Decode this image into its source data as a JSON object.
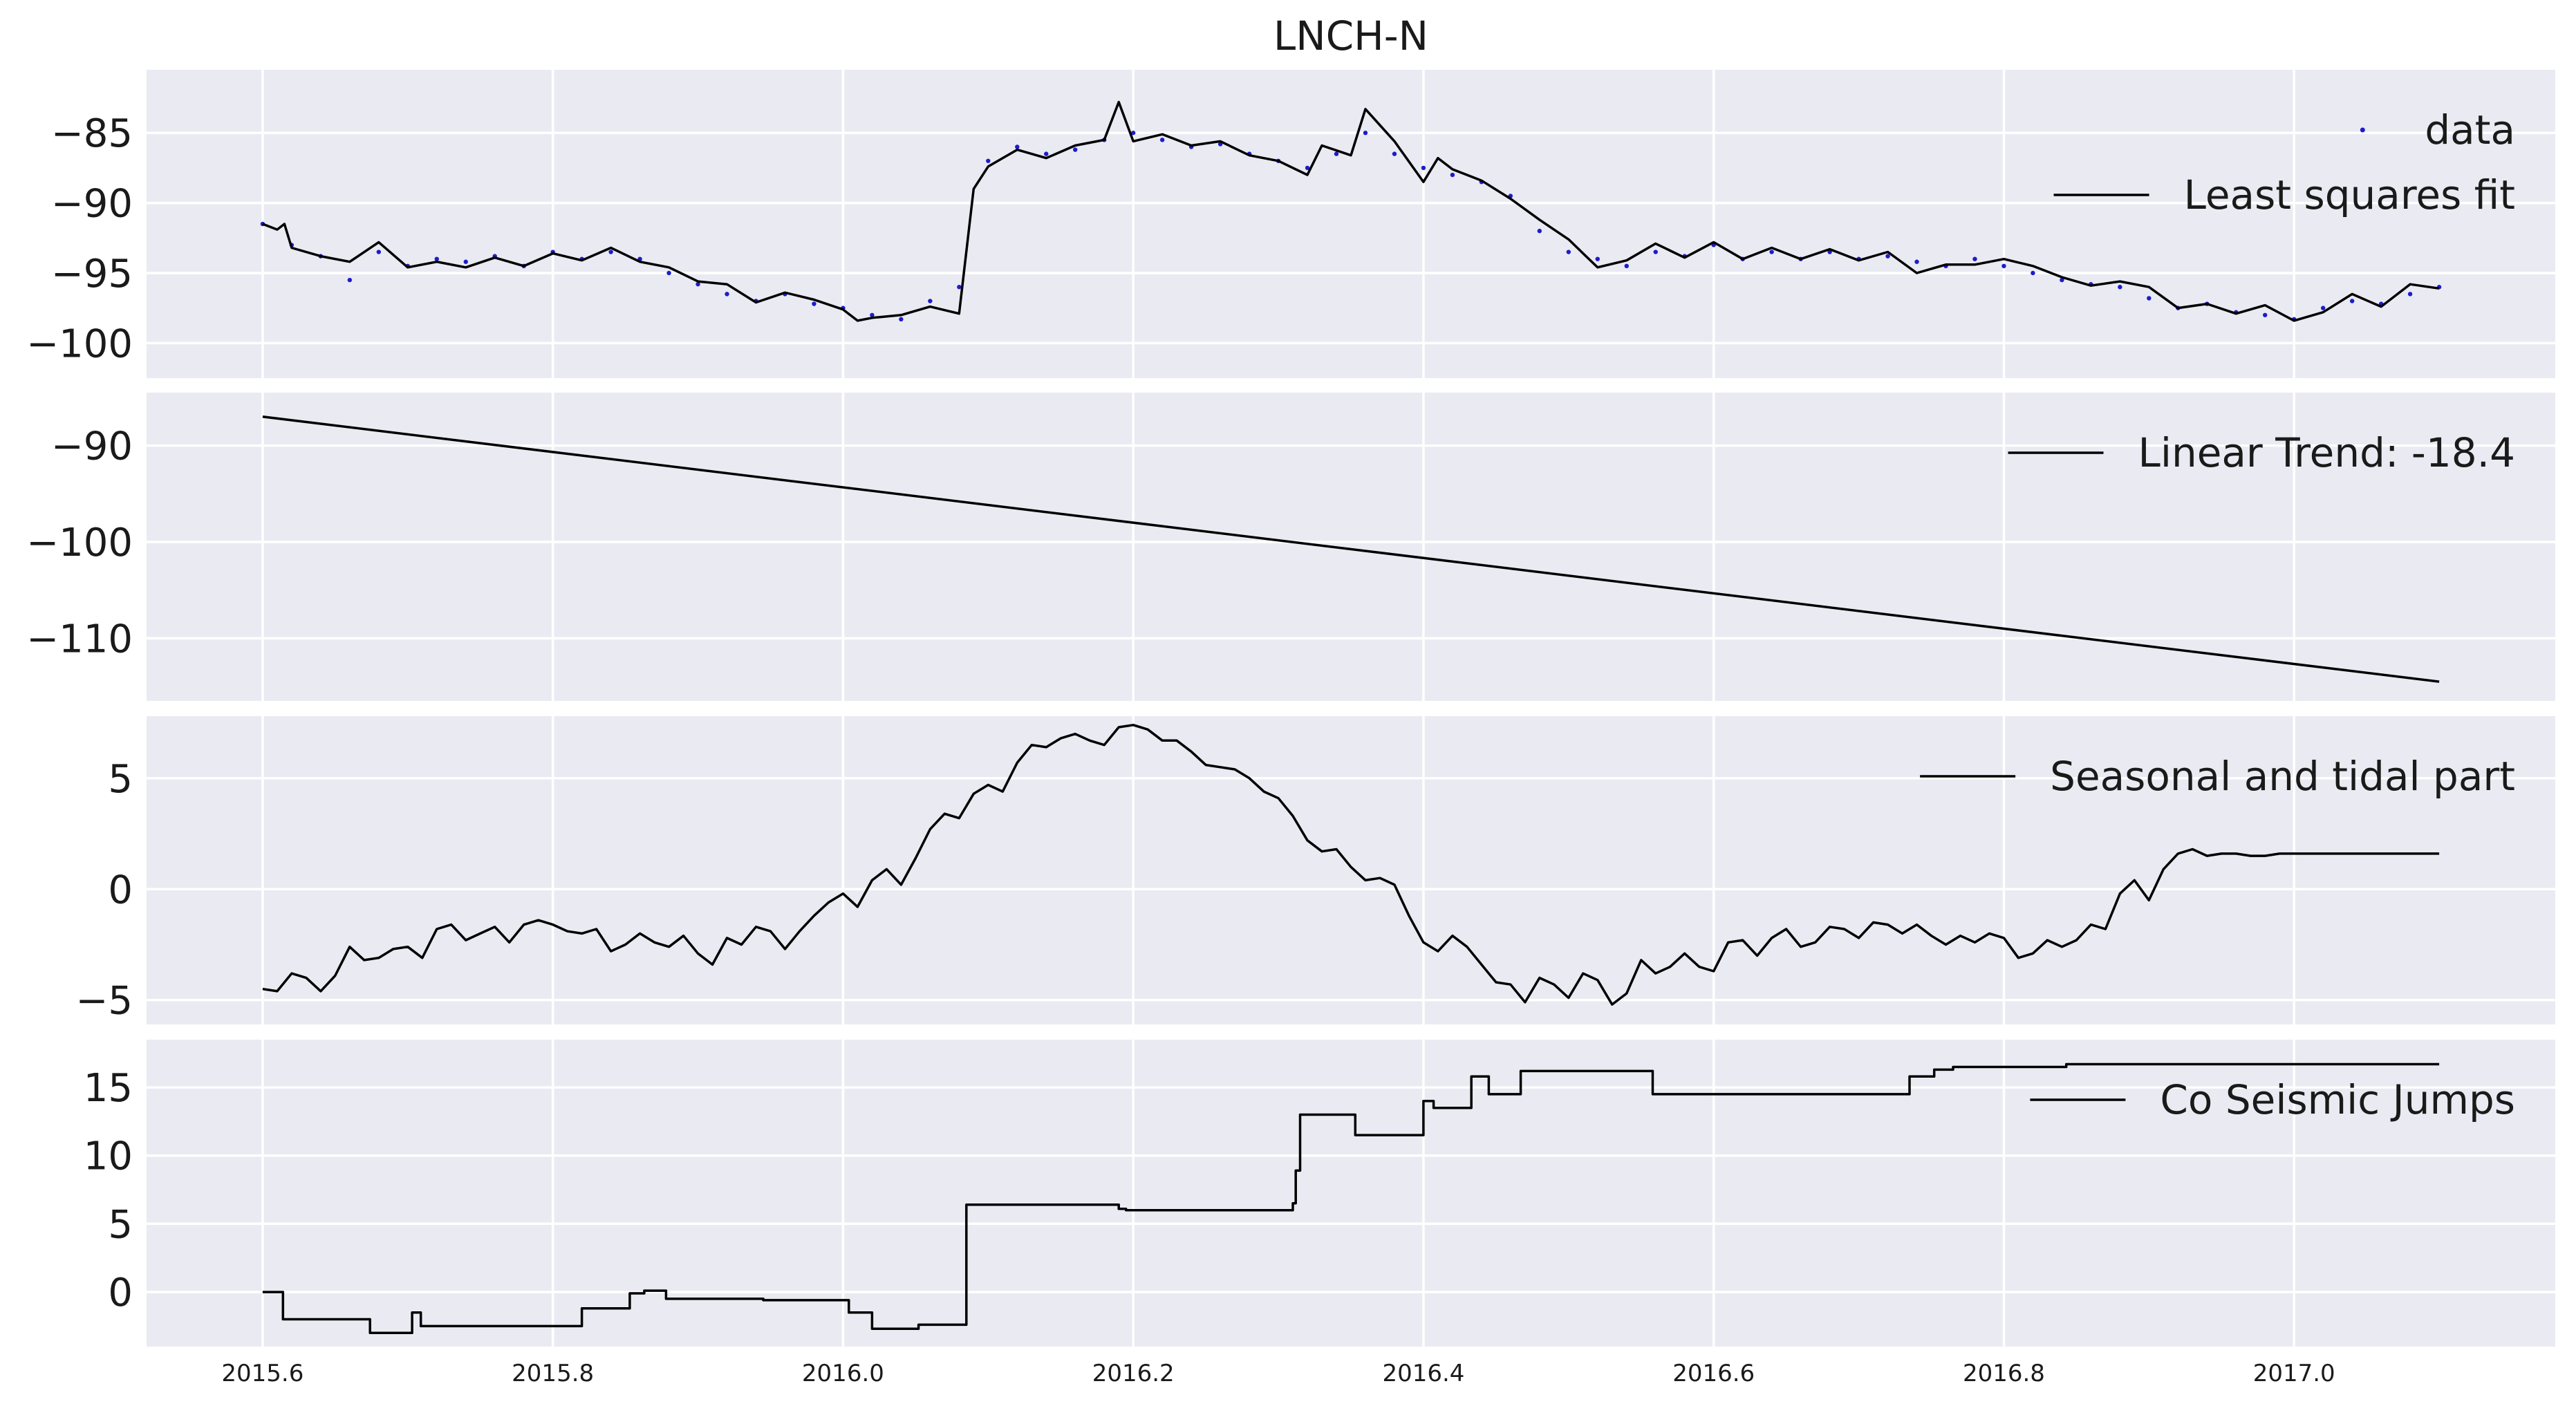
{
  "title": "LNCH-N",
  "colors": {
    "axes_bg": "#eaeaf2",
    "grid": "#ffffff",
    "line": "#000000",
    "data": "#1c1ccc"
  },
  "chart_data": [
    {
      "type": "scatter",
      "panel": "top",
      "xlim": [
        2015.52,
        2017.18
      ],
      "ylim": [
        -102.5,
        -80.5
      ],
      "yticks": [
        -85,
        -90,
        -95,
        -100
      ],
      "xticks": [
        2015.6,
        2015.8,
        2016.0,
        2016.2,
        2016.4,
        2016.6,
        2016.8,
        2017.0
      ],
      "grid": true,
      "legend_position": "top-right",
      "series": [
        {
          "name": "data",
          "kind": "points",
          "color": "#1c1ccc",
          "x": [
            2015.6,
            2015.62,
            2015.64,
            2015.66,
            2015.68,
            2015.7,
            2015.72,
            2015.74,
            2015.76,
            2015.78,
            2015.8,
            2015.82,
            2015.84,
            2015.86,
            2015.88,
            2015.9,
            2015.92,
            2015.94,
            2015.96,
            2015.98,
            2016.0,
            2016.02,
            2016.04,
            2016.06,
            2016.08,
            2016.1,
            2016.12,
            2016.14,
            2016.16,
            2016.18,
            2016.2,
            2016.22,
            2016.24,
            2016.26,
            2016.28,
            2016.3,
            2016.32,
            2016.34,
            2016.36,
            2016.38,
            2016.4,
            2016.42,
            2016.44,
            2016.46,
            2016.48,
            2016.5,
            2016.52,
            2016.54,
            2016.56,
            2016.58,
            2016.6,
            2016.62,
            2016.64,
            2016.66,
            2016.68,
            2016.7,
            2016.72,
            2016.74,
            2016.76,
            2016.78,
            2016.8,
            2016.82,
            2016.84,
            2016.86,
            2016.88,
            2016.9,
            2016.92,
            2016.94,
            2016.96,
            2016.98,
            2017.0,
            2017.02,
            2017.04,
            2017.06,
            2017.08,
            2017.1
          ],
          "y": [
            -91.5,
            -93,
            -93.8,
            -95.5,
            -93.5,
            -94.5,
            -94,
            -94.2,
            -93.8,
            -94.5,
            -93.5,
            -94,
            -93.5,
            -94,
            -95,
            -95.8,
            -96.5,
            -97,
            -96.5,
            -97.2,
            -97.5,
            -98,
            -98.3,
            -97,
            -96,
            -87,
            -86,
            -86.5,
            -86.2,
            -85.5,
            -85,
            -85.5,
            -86,
            -85.8,
            -86.5,
            -87,
            -87.5,
            -86.5,
            -85,
            -86.5,
            -87.5,
            -88,
            -88.5,
            -89.5,
            -92,
            -93.5,
            -94,
            -94.5,
            -93.5,
            -93.8,
            -93,
            -94,
            -93.5,
            -94,
            -93.5,
            -94,
            -93.8,
            -94.2,
            -94.5,
            -94,
            -94.5,
            -95,
            -95.5,
            -95.8,
            -96,
            -96.8,
            -97.5,
            -97.2,
            -97.8,
            -98,
            -98.3,
            -97.5,
            -97,
            -97.2,
            -96.5,
            -96
          ]
        },
        {
          "name": "Least squares fit",
          "kind": "line",
          "color": "#000000",
          "x": [
            2015.6,
            2015.61,
            2015.615,
            2015.62,
            2015.64,
            2015.66,
            2015.68,
            2015.7,
            2015.72,
            2015.74,
            2015.76,
            2015.78,
            2015.8,
            2015.82,
            2015.84,
            2015.86,
            2015.88,
            2015.9,
            2015.92,
            2015.94,
            2015.96,
            2015.98,
            2016.0,
            2016.01,
            2016.02,
            2016.04,
            2016.06,
            2016.08,
            2016.09,
            2016.1,
            2016.12,
            2016.14,
            2016.16,
            2016.18,
            2016.19,
            2016.2,
            2016.22,
            2016.24,
            2016.26,
            2016.28,
            2016.3,
            2016.32,
            2016.33,
            2016.35,
            2016.36,
            2016.38,
            2016.4,
            2016.41,
            2016.42,
            2016.44,
            2016.46,
            2016.48,
            2016.5,
            2016.52,
            2016.54,
            2016.56,
            2016.58,
            2016.6,
            2016.62,
            2016.64,
            2016.66,
            2016.68,
            2016.7,
            2016.72,
            2016.74,
            2016.76,
            2016.78,
            2016.8,
            2016.82,
            2016.84,
            2016.86,
            2016.88,
            2016.9,
            2016.92,
            2016.94,
            2016.96,
            2016.98,
            2017.0,
            2017.02,
            2017.04,
            2017.06,
            2017.08,
            2017.1
          ],
          "y": [
            -91.5,
            -91.9,
            -91.5,
            -93.2,
            -93.8,
            -94.2,
            -92.8,
            -94.6,
            -94.2,
            -94.6,
            -93.9,
            -94.5,
            -93.6,
            -94.1,
            -93.2,
            -94.2,
            -94.6,
            -95.6,
            -95.8,
            -97.1,
            -96.4,
            -96.9,
            -97.6,
            -98.4,
            -98.2,
            -98.0,
            -97.4,
            -97.9,
            -89.0,
            -87.4,
            -86.2,
            -86.8,
            -85.9,
            -85.5,
            -82.8,
            -85.6,
            -85.1,
            -85.9,
            -85.6,
            -86.6,
            -87.0,
            -88.0,
            -85.9,
            -86.6,
            -83.3,
            -85.6,
            -88.5,
            -86.8,
            -87.6,
            -88.4,
            -89.7,
            -91.2,
            -92.6,
            -94.6,
            -94.1,
            -92.9,
            -93.9,
            -92.8,
            -94.0,
            -93.2,
            -94.0,
            -93.3,
            -94.1,
            -93.5,
            -95.0,
            -94.4,
            -94.4,
            -94.0,
            -94.5,
            -95.3,
            -95.9,
            -95.6,
            -96.0,
            -97.5,
            -97.2,
            -97.9,
            -97.3,
            -98.4,
            -97.8,
            -96.5,
            -97.4,
            -95.8,
            -96.1
          ]
        }
      ]
    },
    {
      "type": "line",
      "panel": "second",
      "xlim": [
        2015.52,
        2017.18
      ],
      "ylim": [
        -116.5,
        -84.5
      ],
      "yticks": [
        -90,
        -100,
        -110
      ],
      "grid": true,
      "legend_position": "top-right",
      "series": [
        {
          "name": "Linear Trend: -18.4",
          "color": "#000000",
          "x": [
            2015.6,
            2017.1
          ],
          "y": [
            -87.0,
            -114.5
          ]
        }
      ]
    },
    {
      "type": "line",
      "panel": "third",
      "xlim": [
        2015.52,
        2017.18
      ],
      "ylim": [
        -6.1,
        7.8
      ],
      "yticks": [
        5,
        0,
        -5
      ],
      "grid": true,
      "legend_position": "top-right",
      "series": [
        {
          "name": "Seasonal and tidal part",
          "color": "#000000",
          "x": [
            2015.6,
            2015.61,
            2015.62,
            2015.63,
            2015.64,
            2015.65,
            2015.66,
            2015.67,
            2015.68,
            2015.69,
            2015.7,
            2015.71,
            2015.72,
            2015.73,
            2015.74,
            2015.75,
            2015.76,
            2015.77,
            2015.78,
            2015.79,
            2015.8,
            2015.81,
            2015.82,
            2015.83,
            2015.84,
            2015.85,
            2015.86,
            2015.87,
            2015.88,
            2015.89,
            2015.9,
            2015.91,
            2015.92,
            2015.93,
            2015.94,
            2015.95,
            2015.96,
            2015.97,
            2015.98,
            2015.99,
            2016.0,
            2016.01,
            2016.02,
            2016.03,
            2016.04,
            2016.05,
            2016.06,
            2016.07,
            2016.08,
            2016.09,
            2016.1,
            2016.11,
            2016.12,
            2016.13,
            2016.14,
            2016.15,
            2016.16,
            2016.17,
            2016.18,
            2016.19,
            2016.2,
            2016.21,
            2016.22,
            2016.23,
            2016.24,
            2016.25,
            2016.26,
            2016.27,
            2016.28,
            2016.29,
            2016.3,
            2016.31,
            2016.32,
            2016.33,
            2016.34,
            2016.35,
            2016.36,
            2016.37,
            2016.38,
            2016.39,
            2016.4,
            2016.41,
            2016.42,
            2016.43,
            2016.44,
            2016.45,
            2016.46,
            2016.47,
            2016.48,
            2016.49,
            2016.5,
            2016.51,
            2016.52,
            2016.53,
            2016.54,
            2016.55,
            2016.56,
            2016.57,
            2016.58,
            2016.59,
            2016.6,
            2016.61,
            2016.62,
            2016.63,
            2016.64,
            2016.65,
            2016.66,
            2016.67,
            2016.68,
            2016.69,
            2016.7,
            2016.71,
            2016.72,
            2016.73,
            2016.74,
            2016.75,
            2016.76,
            2016.77,
            2016.78,
            2016.79,
            2016.8,
            2016.81,
            2016.82,
            2016.83,
            2016.84,
            2016.85,
            2016.86,
            2016.87,
            2016.88,
            2016.89,
            2016.9,
            2016.91,
            2016.92,
            2016.93,
            2016.94,
            2016.95,
            2016.96,
            2016.97,
            2016.98,
            2016.99,
            2017.0,
            2017.01,
            2017.02,
            2017.03,
            2017.04,
            2017.05,
            2017.06,
            2017.07,
            2017.08,
            2017.09,
            2017.1
          ],
          "y": [
            -4.5,
            -4.6,
            -3.8,
            -4.0,
            -4.6,
            -3.9,
            -2.6,
            -3.2,
            -3.1,
            -2.7,
            -2.6,
            -3.1,
            -1.8,
            -1.6,
            -2.3,
            -2.0,
            -1.7,
            -2.4,
            -1.6,
            -1.4,
            -1.6,
            -1.9,
            -2.0,
            -1.8,
            -2.8,
            -2.5,
            -2.0,
            -2.4,
            -2.6,
            -2.1,
            -2.9,
            -3.4,
            -2.2,
            -2.5,
            -1.7,
            -1.9,
            -2.7,
            -1.9,
            -1.2,
            -0.6,
            -0.2,
            -0.8,
            0.4,
            0.9,
            0.2,
            1.4,
            2.7,
            3.4,
            3.2,
            4.3,
            4.7,
            4.4,
            5.7,
            6.5,
            6.4,
            6.8,
            7.0,
            6.7,
            6.5,
            7.3,
            7.4,
            7.2,
            6.7,
            6.7,
            6.2,
            5.6,
            5.5,
            5.4,
            5.0,
            4.4,
            4.1,
            3.3,
            2.2,
            1.7,
            1.8,
            1.0,
            0.4,
            0.5,
            0.2,
            -1.2,
            -2.4,
            -2.8,
            -2.1,
            -2.6,
            -3.4,
            -4.2,
            -4.3,
            -5.1,
            -4.0,
            -4.3,
            -4.9,
            -3.8,
            -4.1,
            -5.2,
            -4.7,
            -3.2,
            -3.8,
            -3.5,
            -2.9,
            -3.5,
            -3.7,
            -2.4,
            -2.3,
            -3.0,
            -2.2,
            -1.8,
            -2.6,
            -2.4,
            -1.7,
            -1.8,
            -2.2,
            -1.5,
            -1.6,
            -2.0,
            -1.6,
            -2.1,
            -2.5,
            -2.1,
            -2.4,
            -2.0,
            -2.2,
            -3.1,
            -2.9,
            -2.3,
            -2.6,
            -2.3,
            -1.6,
            -1.8,
            -0.2,
            0.4,
            -0.5,
            0.9,
            1.6,
            1.8,
            1.5,
            1.6,
            1.6,
            1.5,
            1.5,
            1.6,
            1.6,
            1.6,
            1.6,
            1.6,
            1.6,
            1.6,
            1.6,
            1.6,
            1.6,
            1.6,
            1.6
          ]
        }
      ]
    },
    {
      "type": "line",
      "panel": "bottom",
      "xlim": [
        2015.52,
        2017.18
      ],
      "ylim": [
        -4.0,
        18.5
      ],
      "yticks": [
        15,
        10,
        5,
        0
      ],
      "xticks": [
        2015.6,
        2015.8,
        2016.0,
        2016.2,
        2016.4,
        2016.6,
        2016.8,
        2017.0
      ],
      "grid": true,
      "legend_position": "top-right",
      "series": [
        {
          "name": "Co Seismic Jumps",
          "color": "#000000",
          "x": [
            2015.6,
            2015.614,
            2015.614,
            2015.674,
            2015.674,
            2015.703,
            2015.703,
            2015.709,
            2015.709,
            2015.82,
            2015.82,
            2015.853,
            2015.853,
            2015.863,
            2015.863,
            2015.878,
            2015.878,
            2015.945,
            2015.945,
            2016.004,
            2016.004,
            2016.02,
            2016.02,
            2016.052,
            2016.052,
            2016.085,
            2016.085,
            2016.19,
            2016.19,
            2016.195,
            2016.195,
            2016.31,
            2016.31,
            2016.312,
            2016.312,
            2016.315,
            2016.315,
            2016.353,
            2016.353,
            2016.4,
            2016.4,
            2016.407,
            2016.407,
            2016.433,
            2016.433,
            2016.445,
            2016.445,
            2016.467,
            2016.467,
            2016.558,
            2016.558,
            2016.735,
            2016.735,
            2016.752,
            2016.752,
            2016.765,
            2016.765,
            2016.843,
            2016.843,
            2016.903,
            2016.903,
            2017.1
          ],
          "y": [
            0.0,
            0.0,
            -2.0,
            -2.0,
            -3.0,
            -3.0,
            -1.5,
            -1.5,
            -2.5,
            -2.5,
            -1.2,
            -1.2,
            -0.1,
            -0.1,
            0.1,
            0.1,
            -0.5,
            -0.5,
            -0.6,
            -0.6,
            -1.5,
            -1.5,
            -2.7,
            -2.7,
            -2.4,
            -2.4,
            6.4,
            6.4,
            6.1,
            6.1,
            6.0,
            6.0,
            6.5,
            6.5,
            8.9,
            8.9,
            13.0,
            13.0,
            11.5,
            11.5,
            14.0,
            14.0,
            13.5,
            13.5,
            15.8,
            15.8,
            14.5,
            14.5,
            16.2,
            16.2,
            14.5,
            14.5,
            15.8,
            15.8,
            16.3,
            16.3,
            16.5,
            16.5,
            16.7,
            16.7,
            16.7,
            16.7
          ]
        }
      ]
    }
  ]
}
